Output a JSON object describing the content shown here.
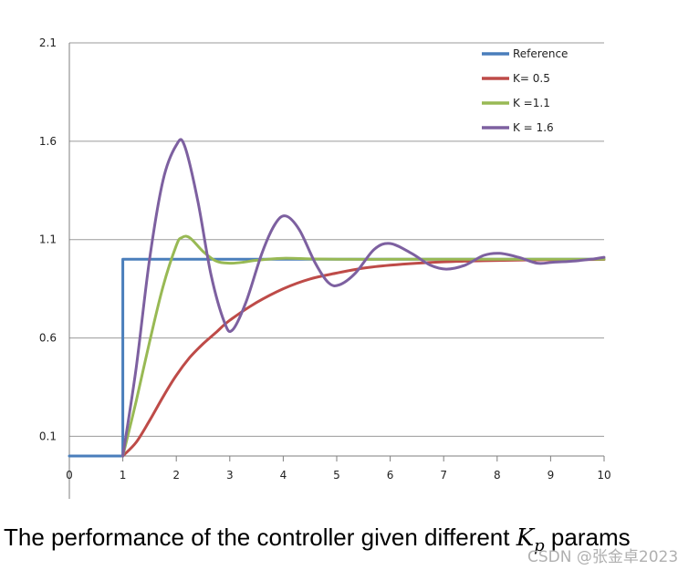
{
  "chart_data": {
    "type": "line",
    "title": "",
    "xlabel": "",
    "ylabel": "",
    "xlim": [
      0,
      10
    ],
    "ylim": [
      0,
      2.1
    ],
    "x_ticks": [
      "0",
      "1",
      "2",
      "3",
      "4",
      "5",
      "6",
      "7",
      "8",
      "9",
      "10"
    ],
    "y_ticks": [
      "0.1",
      "0.6",
      "1.1",
      "1.6",
      "2.1"
    ],
    "y_tick_values": [
      0.1,
      0.6,
      1.1,
      1.6,
      2.1
    ],
    "grid": "horizontal",
    "legend_position": "top-right",
    "series": [
      {
        "name": "Reference",
        "color": "#4a7ebb",
        "x": [
          0,
          1,
          1,
          10
        ],
        "y": [
          0,
          0,
          1,
          1
        ]
      },
      {
        "name": "K= 0.5",
        "color": "#be4b48",
        "x": [
          1,
          1.25,
          1.5,
          1.75,
          2,
          2.25,
          2.5,
          2.75,
          3,
          3.5,
          4,
          4.5,
          5,
          5.5,
          6,
          6.5,
          7,
          7.5,
          8,
          8.5,
          9,
          9.5,
          10
        ],
        "y": [
          0,
          0.07,
          0.18,
          0.3,
          0.41,
          0.5,
          0.57,
          0.63,
          0.69,
          0.78,
          0.85,
          0.9,
          0.93,
          0.955,
          0.97,
          0.98,
          0.987,
          0.991,
          0.994,
          0.996,
          0.997,
          0.998,
          0.999
        ]
      },
      {
        "name": "K =1.1",
        "color": "#98b954",
        "x": [
          1,
          1.25,
          1.5,
          1.75,
          2,
          2.1,
          2.25,
          2.5,
          2.75,
          3,
          3.25,
          3.5,
          4,
          4.5,
          5,
          6,
          7,
          8,
          9,
          10
        ],
        "y": [
          0,
          0.28,
          0.58,
          0.86,
          1.07,
          1.11,
          1.11,
          1.04,
          0.99,
          0.98,
          0.985,
          0.995,
          1.005,
          1.002,
          1.0,
          1.0,
          1.0,
          1.0,
          1.0,
          1.0
        ]
      },
      {
        "name": "K = 1.6",
        "color": "#7d60a0",
        "x": [
          1,
          1.25,
          1.5,
          1.75,
          2,
          2.15,
          2.4,
          2.65,
          2.9,
          3.05,
          3.3,
          3.6,
          3.85,
          4.05,
          4.3,
          4.6,
          4.85,
          5.05,
          5.35,
          5.7,
          6,
          6.4,
          6.75,
          7.05,
          7.4,
          7.75,
          8.05,
          8.4,
          8.75,
          9.05,
          9.4,
          9.75,
          10
        ],
        "y": [
          0,
          0.45,
          1.0,
          1.4,
          1.58,
          1.58,
          1.3,
          0.92,
          0.68,
          0.64,
          0.78,
          1.03,
          1.18,
          1.22,
          1.15,
          0.98,
          0.88,
          0.87,
          0.93,
          1.05,
          1.08,
          1.03,
          0.97,
          0.95,
          0.97,
          1.02,
          1.03,
          1.01,
          0.98,
          0.985,
          0.99,
          1.0,
          1.01
        ]
      }
    ]
  },
  "caption": {
    "text": "The performance of the controller given different ",
    "symbol": "K",
    "subscript": "p",
    "suffix": " params"
  },
  "watermark": "CSDN @张金卓2023"
}
